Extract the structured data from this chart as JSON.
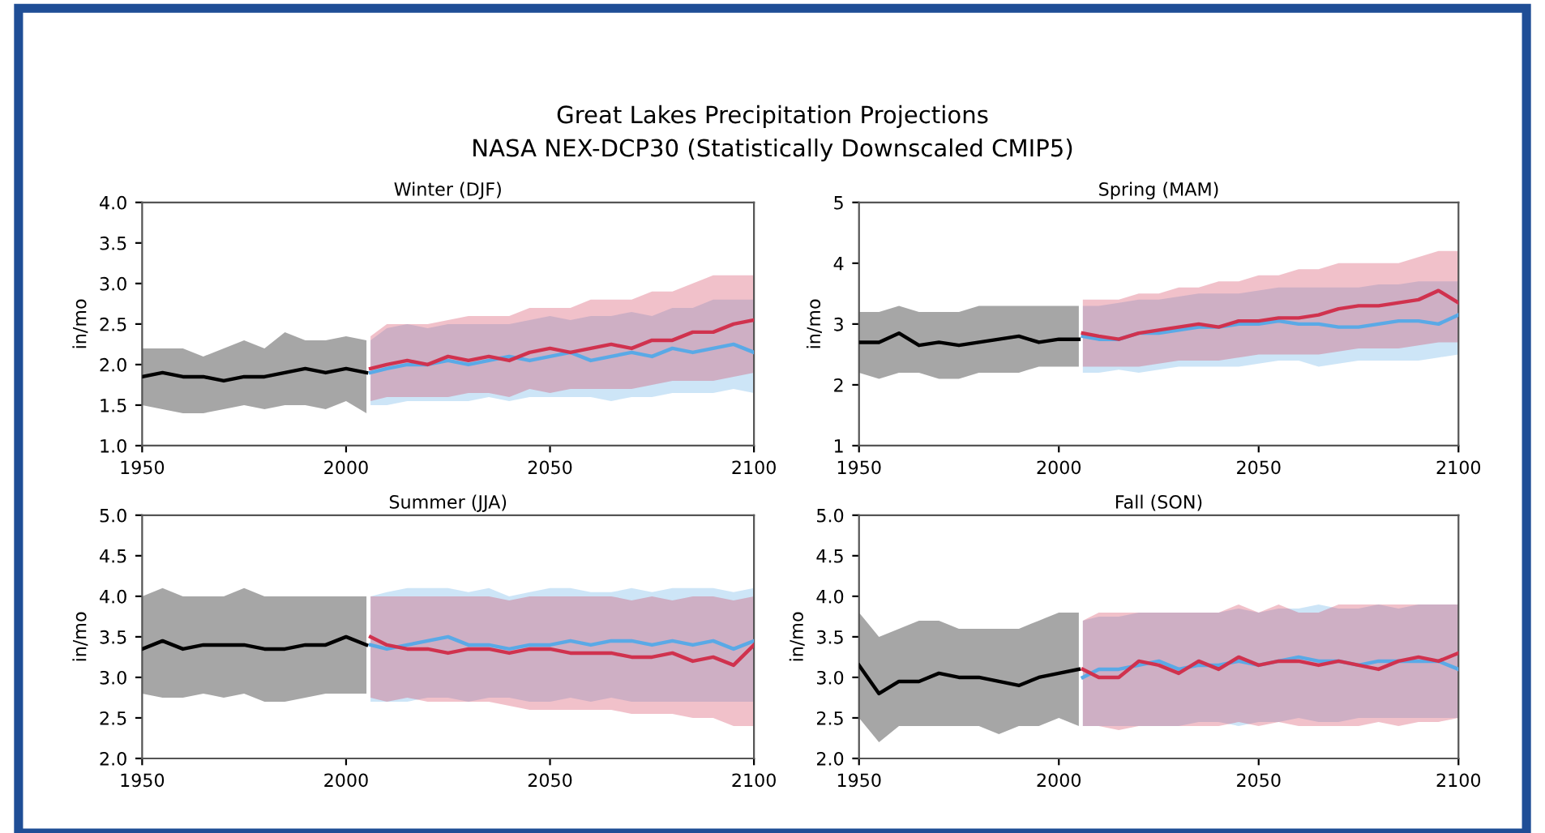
{
  "chart_data": [
    {
      "type": "line",
      "title": "Winter (DJF)",
      "ylabel": "in/mo",
      "annotations": [
        "Great Lakes Precipitation Projections",
        "NASA NEX-DCP30 (Statistically Downscaled CMIP5)"
      ],
      "xlim": [
        1950,
        2100
      ],
      "xticks": [
        1950,
        2000,
        2050,
        2100
      ],
      "ylim": [
        1.0,
        4.0
      ],
      "yticks": [
        {
          "value": 1.0,
          "label": "1.0"
        },
        1.5,
        {
          "value": 2.0,
          "label": "2.0"
        },
        2.5,
        {
          "value": 3.0,
          "label": "3.0"
        },
        3.5,
        {
          "value": 4.0,
          "label": "4.0"
        }
      ],
      "grid": false,
      "legend": false,
      "marker": "none",
      "line_style": "solid",
      "series": [
        {
          "color": "#000000",
          "x": [
            1950,
            1955,
            1960,
            1965,
            1970,
            1975,
            1980,
            1985,
            1990,
            1995,
            2000,
            2005
          ],
          "values": [
            1.85,
            1.9,
            1.85,
            1.85,
            1.8,
            1.85,
            1.85,
            1.9,
            1.95,
            1.9,
            1.95,
            1.9
          ],
          "lower": [
            1.5,
            1.45,
            1.4,
            1.4,
            1.45,
            1.5,
            1.45,
            1.5,
            1.5,
            1.45,
            1.55,
            1.4
          ],
          "upper": [
            2.2,
            2.2,
            2.2,
            2.1,
            2.2,
            2.3,
            2.2,
            2.4,
            2.3,
            2.3,
            2.35,
            2.3
          ]
        },
        {
          "color": "#5aa9e6",
          "x": [
            2006,
            2010,
            2015,
            2020,
            2025,
            2030,
            2035,
            2040,
            2045,
            2050,
            2055,
            2060,
            2065,
            2070,
            2075,
            2080,
            2085,
            2090,
            2095,
            2100
          ],
          "values": [
            1.9,
            1.95,
            2.0,
            2.0,
            2.05,
            2.0,
            2.05,
            2.1,
            2.05,
            2.1,
            2.15,
            2.05,
            2.1,
            2.15,
            2.1,
            2.2,
            2.15,
            2.2,
            2.25,
            2.15
          ],
          "lower": [
            1.5,
            1.5,
            1.55,
            1.55,
            1.55,
            1.55,
            1.6,
            1.55,
            1.6,
            1.6,
            1.6,
            1.6,
            1.55,
            1.6,
            1.6,
            1.65,
            1.65,
            1.65,
            1.7,
            1.65
          ],
          "upper": [
            2.3,
            2.45,
            2.5,
            2.45,
            2.5,
            2.5,
            2.5,
            2.5,
            2.55,
            2.6,
            2.55,
            2.6,
            2.6,
            2.65,
            2.6,
            2.7,
            2.7,
            2.8,
            2.8,
            2.8
          ]
        },
        {
          "color": "#d0324e",
          "x": [
            2006,
            2010,
            2015,
            2020,
            2025,
            2030,
            2035,
            2040,
            2045,
            2050,
            2055,
            2060,
            2065,
            2070,
            2075,
            2080,
            2085,
            2090,
            2095,
            2100
          ],
          "values": [
            1.95,
            2.0,
            2.05,
            2.0,
            2.1,
            2.05,
            2.1,
            2.05,
            2.15,
            2.2,
            2.15,
            2.2,
            2.25,
            2.2,
            2.3,
            2.3,
            2.4,
            2.4,
            2.5,
            2.55
          ],
          "lower": [
            1.55,
            1.6,
            1.6,
            1.6,
            1.6,
            1.65,
            1.65,
            1.6,
            1.7,
            1.65,
            1.7,
            1.7,
            1.7,
            1.7,
            1.75,
            1.8,
            1.8,
            1.8,
            1.85,
            1.9
          ],
          "upper": [
            2.35,
            2.5,
            2.5,
            2.5,
            2.55,
            2.6,
            2.6,
            2.6,
            2.7,
            2.7,
            2.7,
            2.8,
            2.8,
            2.8,
            2.9,
            2.9,
            3.0,
            3.1,
            3.1,
            3.1
          ]
        }
      ]
    },
    {
      "type": "line",
      "title": "Spring (MAM)",
      "ylabel": "in/mo",
      "xlim": [
        1950,
        2100
      ],
      "xticks": [
        1950,
        2000,
        2050,
        2100
      ],
      "ylim": [
        1,
        5
      ],
      "yticks": [
        1,
        2,
        3,
        4,
        5
      ],
      "grid": false,
      "legend": false,
      "marker": "none",
      "line_style": "solid",
      "series": [
        {
          "color": "#000000",
          "x": [
            1950,
            1955,
            1960,
            1965,
            1970,
            1975,
            1980,
            1985,
            1990,
            1995,
            2000,
            2005
          ],
          "values": [
            2.7,
            2.7,
            2.85,
            2.65,
            2.7,
            2.65,
            2.7,
            2.75,
            2.8,
            2.7,
            2.75,
            2.75
          ],
          "lower": [
            2.2,
            2.1,
            2.2,
            2.2,
            2.1,
            2.1,
            2.2,
            2.2,
            2.2,
            2.3,
            2.3,
            2.3
          ],
          "upper": [
            3.2,
            3.2,
            3.3,
            3.2,
            3.2,
            3.2,
            3.3,
            3.3,
            3.3,
            3.3,
            3.3,
            3.3
          ]
        },
        {
          "color": "#5aa9e6",
          "x": [
            2006,
            2010,
            2015,
            2020,
            2025,
            2030,
            2035,
            2040,
            2045,
            2050,
            2055,
            2060,
            2065,
            2070,
            2075,
            2080,
            2085,
            2090,
            2095,
            2100
          ],
          "values": [
            2.8,
            2.75,
            2.75,
            2.85,
            2.85,
            2.9,
            2.95,
            2.95,
            3.0,
            3.0,
            3.05,
            3.0,
            3.0,
            2.95,
            2.95,
            3.0,
            3.05,
            3.05,
            3.0,
            3.15
          ],
          "lower": [
            2.2,
            2.2,
            2.25,
            2.2,
            2.25,
            2.3,
            2.3,
            2.3,
            2.3,
            2.35,
            2.4,
            2.4,
            2.3,
            2.35,
            2.4,
            2.4,
            2.4,
            2.4,
            2.45,
            2.5
          ],
          "upper": [
            3.3,
            3.3,
            3.35,
            3.4,
            3.4,
            3.45,
            3.5,
            3.5,
            3.5,
            3.55,
            3.6,
            3.6,
            3.6,
            3.6,
            3.6,
            3.65,
            3.65,
            3.7,
            3.7,
            3.7
          ]
        },
        {
          "color": "#d0324e",
          "x": [
            2006,
            2010,
            2015,
            2020,
            2025,
            2030,
            2035,
            2040,
            2045,
            2050,
            2055,
            2060,
            2065,
            2070,
            2075,
            2080,
            2085,
            2090,
            2095,
            2100
          ],
          "values": [
            2.85,
            2.8,
            2.75,
            2.85,
            2.9,
            2.95,
            3.0,
            2.95,
            3.05,
            3.05,
            3.1,
            3.1,
            3.15,
            3.25,
            3.3,
            3.3,
            3.35,
            3.4,
            3.55,
            3.35
          ],
          "lower": [
            2.3,
            2.3,
            2.3,
            2.3,
            2.35,
            2.4,
            2.4,
            2.4,
            2.45,
            2.5,
            2.5,
            2.5,
            2.5,
            2.55,
            2.6,
            2.6,
            2.6,
            2.65,
            2.7,
            2.7
          ],
          "upper": [
            3.4,
            3.4,
            3.4,
            3.5,
            3.5,
            3.6,
            3.6,
            3.7,
            3.7,
            3.8,
            3.8,
            3.9,
            3.9,
            4.0,
            4.0,
            4.0,
            4.0,
            4.1,
            4.2,
            4.2
          ]
        }
      ]
    },
    {
      "type": "line",
      "title": "Summer (JJA)",
      "ylabel": "in/mo",
      "xlim": [
        1950,
        2100
      ],
      "xticks": [
        1950,
        2000,
        2050,
        2100
      ],
      "ylim": [
        2.0,
        5.0
      ],
      "yticks": [
        {
          "value": 2.0,
          "label": "2.0"
        },
        2.5,
        {
          "value": 3.0,
          "label": "3.0"
        },
        3.5,
        {
          "value": 4.0,
          "label": "4.0"
        },
        4.5,
        {
          "value": 5.0,
          "label": "5.0"
        }
      ],
      "grid": false,
      "legend": false,
      "marker": "none",
      "line_style": "solid",
      "series": [
        {
          "color": "#000000",
          "x": [
            1950,
            1955,
            1960,
            1965,
            1970,
            1975,
            1980,
            1985,
            1990,
            1995,
            2000,
            2005
          ],
          "values": [
            3.35,
            3.45,
            3.35,
            3.4,
            3.4,
            3.4,
            3.35,
            3.35,
            3.4,
            3.4,
            3.5,
            3.4
          ],
          "lower": [
            2.8,
            2.75,
            2.75,
            2.8,
            2.75,
            2.8,
            2.7,
            2.7,
            2.75,
            2.8,
            2.8,
            2.8
          ],
          "upper": [
            4.0,
            4.1,
            4.0,
            4.0,
            4.0,
            4.1,
            4.0,
            4.0,
            4.0,
            4.0,
            4.0,
            4.0
          ]
        },
        {
          "color": "#5aa9e6",
          "x": [
            2006,
            2010,
            2015,
            2020,
            2025,
            2030,
            2035,
            2040,
            2045,
            2050,
            2055,
            2060,
            2065,
            2070,
            2075,
            2080,
            2085,
            2090,
            2095,
            2100
          ],
          "values": [
            3.4,
            3.35,
            3.4,
            3.45,
            3.5,
            3.4,
            3.4,
            3.35,
            3.4,
            3.4,
            3.45,
            3.4,
            3.45,
            3.45,
            3.4,
            3.45,
            3.4,
            3.45,
            3.35,
            3.45
          ],
          "lower": [
            2.7,
            2.7,
            2.7,
            2.75,
            2.75,
            2.7,
            2.75,
            2.75,
            2.7,
            2.7,
            2.75,
            2.7,
            2.75,
            2.7,
            2.7,
            2.7,
            2.7,
            2.7,
            2.7,
            2.7
          ],
          "upper": [
            4.0,
            4.05,
            4.1,
            4.1,
            4.1,
            4.05,
            4.1,
            4.0,
            4.05,
            4.1,
            4.1,
            4.05,
            4.05,
            4.1,
            4.05,
            4.1,
            4.1,
            4.1,
            4.05,
            4.1
          ]
        },
        {
          "color": "#d0324e",
          "x": [
            2006,
            2010,
            2015,
            2020,
            2025,
            2030,
            2035,
            2040,
            2045,
            2050,
            2055,
            2060,
            2065,
            2070,
            2075,
            2080,
            2085,
            2090,
            2095,
            2100
          ],
          "values": [
            3.5,
            3.4,
            3.35,
            3.35,
            3.3,
            3.35,
            3.35,
            3.3,
            3.35,
            3.35,
            3.3,
            3.3,
            3.3,
            3.25,
            3.25,
            3.3,
            3.2,
            3.25,
            3.15,
            3.4
          ],
          "lower": [
            2.75,
            2.7,
            2.75,
            2.7,
            2.7,
            2.7,
            2.7,
            2.65,
            2.6,
            2.6,
            2.6,
            2.6,
            2.6,
            2.55,
            2.55,
            2.55,
            2.5,
            2.5,
            2.4,
            2.4
          ],
          "upper": [
            4.0,
            4.0,
            4.0,
            4.0,
            4.0,
            4.0,
            4.0,
            3.95,
            4.0,
            4.0,
            4.0,
            4.0,
            4.0,
            3.95,
            4.0,
            3.95,
            4.0,
            4.0,
            3.95,
            4.0
          ]
        }
      ]
    },
    {
      "type": "line",
      "title": "Fall (SON)",
      "ylabel": "in/mo",
      "xlim": [
        1950,
        2100
      ],
      "xticks": [
        1950,
        2000,
        2050,
        2100
      ],
      "ylim": [
        2.0,
        5.0
      ],
      "yticks": [
        {
          "value": 2.0,
          "label": "2.0"
        },
        2.5,
        {
          "value": 3.0,
          "label": "3.0"
        },
        3.5,
        {
          "value": 4.0,
          "label": "4.0"
        },
        4.5,
        {
          "value": 5.0,
          "label": "5.0"
        }
      ],
      "grid": false,
      "legend": false,
      "marker": "none",
      "line_style": "solid",
      "series": [
        {
          "color": "#000000",
          "x": [
            1950,
            1955,
            1960,
            1965,
            1970,
            1975,
            1980,
            1985,
            1990,
            1995,
            2000,
            2005
          ],
          "values": [
            3.15,
            2.8,
            2.95,
            2.95,
            3.05,
            3.0,
            3.0,
            2.95,
            2.9,
            3.0,
            3.05,
            3.1
          ],
          "lower": [
            2.5,
            2.2,
            2.4,
            2.4,
            2.4,
            2.4,
            2.4,
            2.3,
            2.4,
            2.4,
            2.5,
            2.4
          ],
          "upper": [
            3.8,
            3.5,
            3.6,
            3.7,
            3.7,
            3.6,
            3.6,
            3.6,
            3.6,
            3.7,
            3.8,
            3.8
          ]
        },
        {
          "color": "#5aa9e6",
          "x": [
            2006,
            2010,
            2015,
            2020,
            2025,
            2030,
            2035,
            2040,
            2045,
            2050,
            2055,
            2060,
            2065,
            2070,
            2075,
            2080,
            2085,
            2090,
            2095,
            2100
          ],
          "values": [
            3.0,
            3.1,
            3.1,
            3.15,
            3.2,
            3.1,
            3.15,
            3.15,
            3.2,
            3.15,
            3.2,
            3.25,
            3.2,
            3.2,
            3.15,
            3.2,
            3.2,
            3.2,
            3.2,
            3.1
          ],
          "lower": [
            2.4,
            2.4,
            2.4,
            2.4,
            2.4,
            2.4,
            2.45,
            2.45,
            2.4,
            2.45,
            2.45,
            2.5,
            2.45,
            2.45,
            2.5,
            2.5,
            2.5,
            2.5,
            2.5,
            2.5
          ],
          "upper": [
            3.7,
            3.75,
            3.75,
            3.8,
            3.8,
            3.8,
            3.8,
            3.8,
            3.85,
            3.8,
            3.85,
            3.85,
            3.9,
            3.85,
            3.85,
            3.9,
            3.85,
            3.9,
            3.9,
            3.9
          ]
        },
        {
          "color": "#d0324e",
          "x": [
            2006,
            2010,
            2015,
            2020,
            2025,
            2030,
            2035,
            2040,
            2045,
            2050,
            2055,
            2060,
            2065,
            2070,
            2075,
            2080,
            2085,
            2090,
            2095,
            2100
          ],
          "values": [
            3.1,
            3.0,
            3.0,
            3.2,
            3.15,
            3.05,
            3.2,
            3.1,
            3.25,
            3.15,
            3.2,
            3.2,
            3.15,
            3.2,
            3.15,
            3.1,
            3.2,
            3.25,
            3.2,
            3.3
          ],
          "lower": [
            2.4,
            2.4,
            2.35,
            2.4,
            2.4,
            2.4,
            2.4,
            2.4,
            2.45,
            2.4,
            2.45,
            2.4,
            2.4,
            2.4,
            2.4,
            2.45,
            2.4,
            2.45,
            2.45,
            2.5
          ],
          "upper": [
            3.7,
            3.8,
            3.8,
            3.8,
            3.8,
            3.8,
            3.8,
            3.8,
            3.9,
            3.8,
            3.9,
            3.8,
            3.8,
            3.9,
            3.9,
            3.9,
            3.9,
            3.9,
            3.9,
            3.9
          ]
        }
      ]
    }
  ]
}
